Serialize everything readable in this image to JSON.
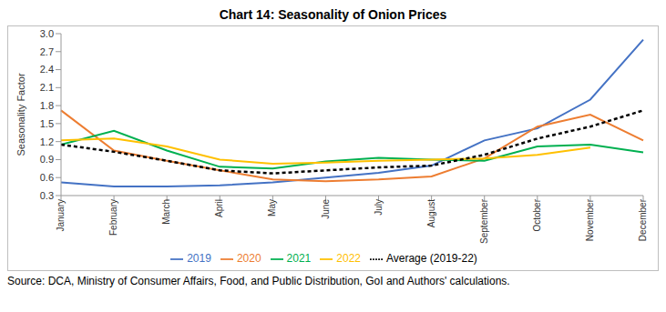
{
  "chart_data": {
    "type": "line",
    "title": "Chart 14: Seasonality of Onion Prices",
    "y_label": "Seasonality Factor",
    "source": "Source: DCA, Ministry of Consumer Affairs, Food, and Public Distribution, GoI and Authors' calculations.",
    "categories": [
      "January",
      "February",
      "March",
      "April",
      "May",
      "June",
      "July",
      "August",
      "September",
      "October",
      "November",
      "December"
    ],
    "series": [
      {
        "name": "2019",
        "color": "#4472c4",
        "line_style": "solid",
        "values": [
          0.52,
          0.45,
          0.45,
          0.47,
          0.52,
          0.6,
          0.68,
          0.8,
          1.22,
          1.42,
          1.9,
          2.9
        ]
      },
      {
        "name": "2020",
        "color": "#ed7d31",
        "line_style": "solid",
        "values": [
          1.72,
          1.05,
          0.88,
          0.72,
          0.57,
          0.54,
          0.57,
          0.62,
          0.92,
          1.45,
          1.65,
          1.22
        ]
      },
      {
        "name": "2021",
        "color": "#00b050",
        "line_style": "solid",
        "values": [
          1.15,
          1.38,
          1.05,
          0.78,
          0.75,
          0.87,
          0.93,
          0.9,
          0.88,
          1.12,
          1.15,
          1.02
        ]
      },
      {
        "name": "2022",
        "color": "#ffc000",
        "line_style": "solid",
        "values": [
          1.22,
          1.25,
          1.12,
          0.9,
          0.83,
          0.85,
          0.88,
          0.9,
          0.92,
          0.98,
          1.1,
          null
        ]
      },
      {
        "name": "Average (2019-22)",
        "color": "#000000",
        "line_style": "dashed",
        "values": [
          1.15,
          1.03,
          0.88,
          0.72,
          0.67,
          0.72,
          0.77,
          0.8,
          0.98,
          1.25,
          1.45,
          1.72
        ]
      }
    ],
    "ylim": [
      0.3,
      3
    ],
    "yticks": [
      0.3,
      0.6,
      0.9,
      1.2,
      1.5,
      1.8,
      2.1,
      2.4,
      2.7,
      {
        "value": 3,
        "label": "3.0"
      }
    ],
    "grid": false,
    "legend": "bottom",
    "marker": "none"
  }
}
